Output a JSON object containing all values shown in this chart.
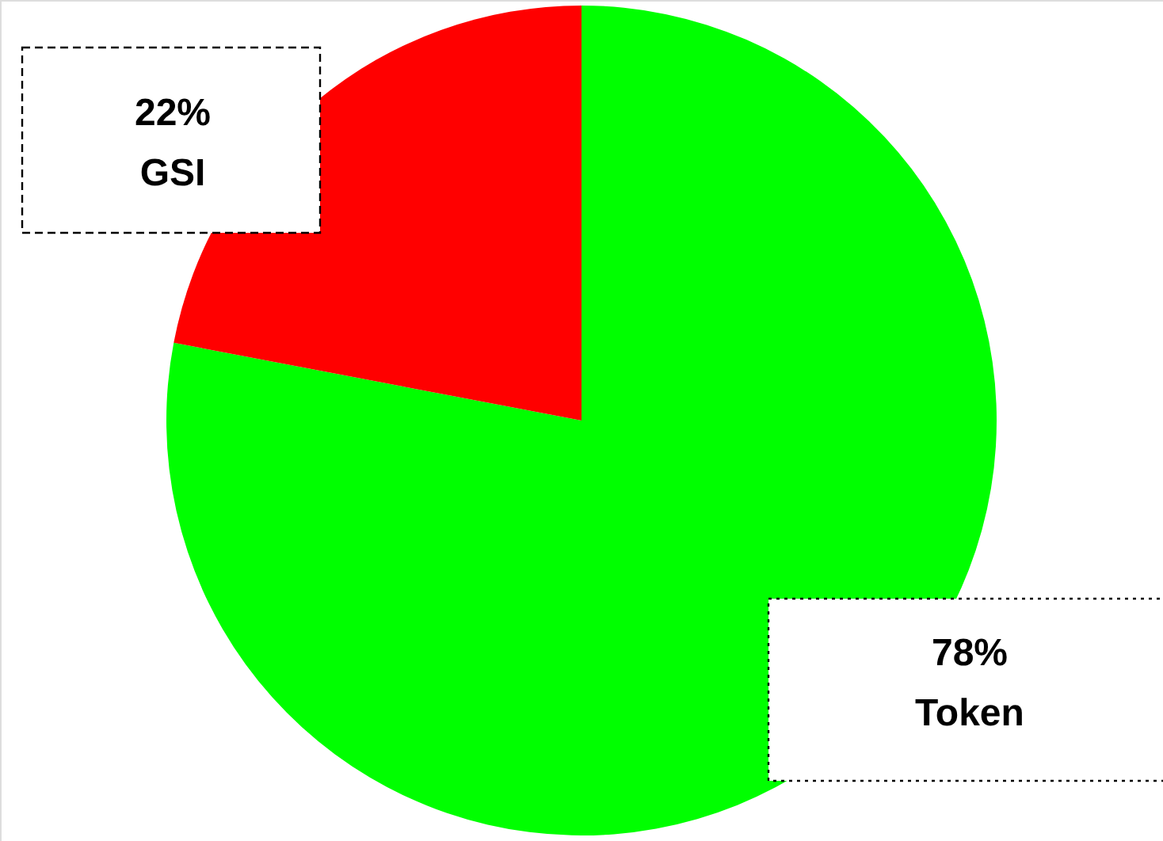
{
  "chart_data": {
    "type": "pie",
    "categories": [
      "Token",
      "GSI"
    ],
    "values": [
      78,
      22
    ],
    "colors": [
      "#00ff00",
      "#ff0000"
    ],
    "value_labels": [
      "78%",
      "22%"
    ]
  }
}
